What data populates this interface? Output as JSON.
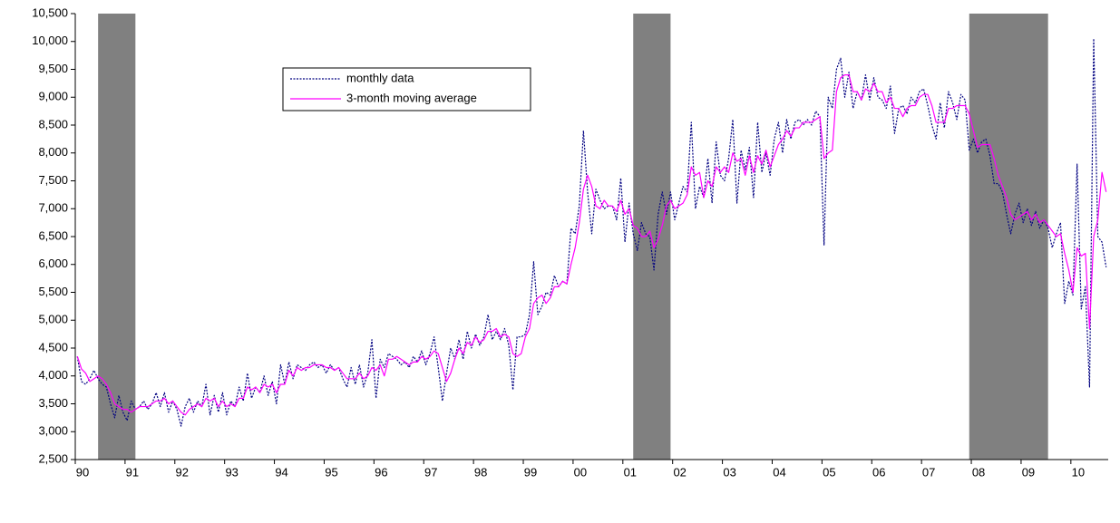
{
  "chart_data": {
    "type": "line",
    "categories": [
      "90",
      null,
      null,
      null,
      null,
      null,
      null,
      null,
      null,
      null,
      null,
      null,
      "91",
      null,
      null,
      null,
      null,
      null,
      null,
      null,
      null,
      null,
      null,
      null,
      "92",
      null,
      null,
      null,
      null,
      null,
      null,
      null,
      null,
      null,
      null,
      null,
      "93",
      null,
      null,
      null,
      null,
      null,
      null,
      null,
      null,
      null,
      null,
      null,
      "94",
      null,
      null,
      null,
      null,
      null,
      null,
      null,
      null,
      null,
      null,
      null,
      "95",
      null,
      null,
      null,
      null,
      null,
      null,
      null,
      null,
      null,
      null,
      null,
      "96",
      null,
      null,
      null,
      null,
      null,
      null,
      null,
      null,
      null,
      null,
      null,
      "97",
      null,
      null,
      null,
      null,
      null,
      null,
      null,
      null,
      null,
      null,
      null,
      "98",
      null,
      null,
      null,
      null,
      null,
      null,
      null,
      null,
      null,
      null,
      null,
      "99",
      null,
      null,
      null,
      null,
      null,
      null,
      null,
      null,
      null,
      null,
      null,
      "00",
      null,
      null,
      null,
      null,
      null,
      null,
      null,
      null,
      null,
      null,
      null,
      "01",
      null,
      null,
      null,
      null,
      null,
      null,
      null,
      null,
      null,
      null,
      null,
      "02",
      null,
      null,
      null,
      null,
      null,
      null,
      null,
      null,
      null,
      null,
      null,
      "03",
      null,
      null,
      null,
      null,
      null,
      null,
      null,
      null,
      null,
      null,
      null,
      "04",
      null,
      null,
      null,
      null,
      null,
      null,
      null,
      null,
      null,
      null,
      null,
      "05",
      null,
      null,
      null,
      null,
      null,
      null,
      null,
      null,
      null,
      null,
      null,
      "06",
      null,
      null,
      null,
      null,
      null,
      null,
      null,
      null,
      null,
      null,
      null,
      "07",
      null,
      null,
      null,
      null,
      null,
      null,
      null,
      null,
      null,
      null,
      null,
      "08",
      null,
      null,
      null,
      null,
      null,
      null,
      null,
      null,
      null,
      null,
      null,
      "09",
      null,
      null,
      null,
      null,
      null,
      null,
      null,
      null,
      null,
      null,
      null,
      "10",
      null,
      null,
      null,
      null,
      null,
      null,
      null,
      null
    ],
    "series": [
      {
        "name": "monthly data",
        "color": "#000080",
        "line_style": "dashed",
        "values": [
          4350,
          3900,
          3850,
          3950,
          4100,
          3950,
          3850,
          3800,
          3500,
          3250,
          3650,
          3350,
          3200,
          3550,
          3400,
          3450,
          3550,
          3400,
          3500,
          3700,
          3450,
          3700,
          3350,
          3550,
          3400,
          3100,
          3450,
          3600,
          3350,
          3550,
          3450,
          3850,
          3300,
          3650,
          3350,
          3700,
          3300,
          3550,
          3450,
          3800,
          3550,
          4050,
          3600,
          3800,
          3700,
          4000,
          3650,
          3900,
          3500,
          4200,
          3850,
          4250,
          3950,
          4200,
          4150,
          4100,
          4200,
          4250,
          4150,
          4200,
          4050,
          4200,
          4100,
          4150,
          3950,
          3800,
          4150,
          3850,
          4200,
          3800,
          4050,
          4650,
          3600,
          4300,
          4150,
          4400,
          4350,
          4300,
          4200,
          4250,
          4150,
          4350,
          4250,
          4450,
          4200,
          4400,
          4700,
          4150,
          3550,
          4050,
          4500,
          4300,
          4650,
          4300,
          4800,
          4500,
          4750,
          4550,
          4700,
          5100,
          4650,
          4800,
          4650,
          4850,
          4550,
          3750,
          4700,
          4700,
          4750,
          5100,
          6050,
          5100,
          5250,
          5500,
          5450,
          5800,
          5600,
          5700,
          5650,
          6650,
          6550,
          7050,
          8400,
          7300,
          6550,
          7350,
          7150,
          7000,
          7050,
          7050,
          6800,
          7550,
          6400,
          7100,
          6550,
          6250,
          6750,
          6550,
          6500,
          5900,
          6900,
          7300,
          6900,
          7300,
          6800,
          7100,
          7400,
          7300,
          8550,
          7000,
          7400,
          7200,
          7900,
          7100,
          8200,
          7600,
          7500,
          7900,
          8600,
          7100,
          8050,
          7700,
          8100,
          7200,
          8550,
          7650,
          8000,
          7600,
          8250,
          8550,
          8000,
          8600,
          8250,
          8550,
          8600,
          8500,
          8600,
          8500,
          8750,
          8650,
          6350,
          9000,
          8800,
          9500,
          9700,
          9000,
          9450,
          8800,
          9100,
          8950,
          9400,
          8950,
          9350,
          9000,
          8950,
          8800,
          9200,
          8350,
          8800,
          8850,
          8700,
          9000,
          8900,
          9100,
          9150,
          8850,
          8500,
          8250,
          8900,
          8450,
          9100,
          8900,
          8600,
          9050,
          8950,
          8050,
          8250,
          8000,
          8200,
          8250,
          7950,
          7450,
          7450,
          7300,
          6900,
          6550,
          6900,
          7100,
          6750,
          7000,
          6700,
          6950,
          6650,
          6800,
          6650,
          6300,
          6550,
          6750,
          5300,
          5700,
          5450,
          7800,
          5200,
          5600,
          3800,
          10050,
          6500,
          6400,
          5950
        ]
      },
      {
        "name": "3-month moving average",
        "color": "#ff00ff",
        "line_style": "solid",
        "values": [
          4350,
          4125,
          4050,
          3900,
          3950,
          4000,
          3950,
          3850,
          3700,
          3500,
          3450,
          3400,
          3400,
          3350,
          3400,
          3450,
          3450,
          3450,
          3500,
          3550,
          3550,
          3600,
          3500,
          3550,
          3450,
          3350,
          3300,
          3400,
          3450,
          3500,
          3450,
          3600,
          3550,
          3600,
          3450,
          3550,
          3450,
          3500,
          3450,
          3600,
          3600,
          3800,
          3750,
          3800,
          3700,
          3850,
          3800,
          3850,
          3700,
          3850,
          3850,
          4100,
          4000,
          4150,
          4100,
          4150,
          4150,
          4200,
          4200,
          4200,
          4150,
          4150,
          4100,
          4150,
          4050,
          3950,
          3950,
          3950,
          4050,
          3950,
          4000,
          4150,
          4100,
          4200,
          4000,
          4300,
          4300,
          4350,
          4300,
          4250,
          4200,
          4250,
          4250,
          4350,
          4300,
          4350,
          4450,
          4400,
          4150,
          3900,
          4050,
          4300,
          4500,
          4400,
          4600,
          4550,
          4700,
          4600,
          4650,
          4800,
          4800,
          4850,
          4700,
          4750,
          4700,
          4400,
          4350,
          4400,
          4700,
          4850,
          5300,
          5400,
          5450,
          5300,
          5400,
          5600,
          5600,
          5700,
          5650,
          6000,
          6300,
          6750,
          7350,
          7600,
          7400,
          7050,
          7000,
          7150,
          7050,
          7050,
          6950,
          7150,
          6900,
          7000,
          6700,
          6650,
          6500,
          6500,
          6600,
          6300,
          6450,
          6700,
          7050,
          7150,
          7000,
          7050,
          7100,
          7250,
          7750,
          7600,
          7650,
          7200,
          7500,
          7400,
          7750,
          7650,
          7750,
          7650,
          8000,
          7850,
          7900,
          7600,
          7950,
          7650,
          7950,
          7800,
          8050,
          7750,
          7950,
          8150,
          8250,
          8400,
          8300,
          8450,
          8450,
          8550,
          8550,
          8550,
          8600,
          8650,
          7900,
          8000,
          8050,
          9100,
          9350,
          9400,
          9400,
          9100,
          9100,
          8950,
          9150,
          9100,
          9250,
          9100,
          9100,
          8900,
          9000,
          8800,
          8800,
          8650,
          8800,
          8850,
          8850,
          9000,
          9050,
          9050,
          8850,
          8550,
          8550,
          8550,
          8800,
          8800,
          8850,
          8850,
          8850,
          8700,
          8400,
          8100,
          8150,
          8150,
          8150,
          7900,
          7600,
          7400,
          7200,
          6900,
          6800,
          6850,
          6900,
          6950,
          6800,
          6900,
          6750,
          6800,
          6700,
          6600,
          6500,
          6550,
          6200,
          5900,
          5500,
          6300,
          6150,
          6200,
          4850,
          6500,
          6800,
          7650,
          7300
        ]
      }
    ],
    "shaded": [
      {
        "from": 5,
        "to": 14
      },
      {
        "from": 134,
        "to": 143
      },
      {
        "from": 215,
        "to": 234
      }
    ],
    "shade_color": "#808080",
    "ylim": [
      2500,
      10500
    ],
    "yticks": [
      {
        "value": 2500,
        "label": "2,500"
      },
      {
        "value": 3000,
        "label": "3,000"
      },
      {
        "value": 3500,
        "label": "3,500"
      },
      {
        "value": 4000,
        "label": "4,000"
      },
      {
        "value": 4500,
        "label": "4,500"
      },
      {
        "value": 5000,
        "label": "5,000"
      },
      {
        "value": 5500,
        "label": "5,500"
      },
      {
        "value": 6000,
        "label": "6,000"
      },
      {
        "value": 6500,
        "label": "6,500"
      },
      {
        "value": 7000,
        "label": "7,000"
      },
      {
        "value": 7500,
        "label": "7,500"
      },
      {
        "value": 8000,
        "label": "8,000"
      },
      {
        "value": 8500,
        "label": "8,500"
      },
      {
        "value": 9000,
        "label": "9,000"
      },
      {
        "value": 9500,
        "label": "9,500"
      },
      {
        "value": 10000,
        "label": "10,000"
      },
      {
        "value": 10500,
        "label": "10,500"
      }
    ],
    "grid": false,
    "legend": "top-left"
  }
}
